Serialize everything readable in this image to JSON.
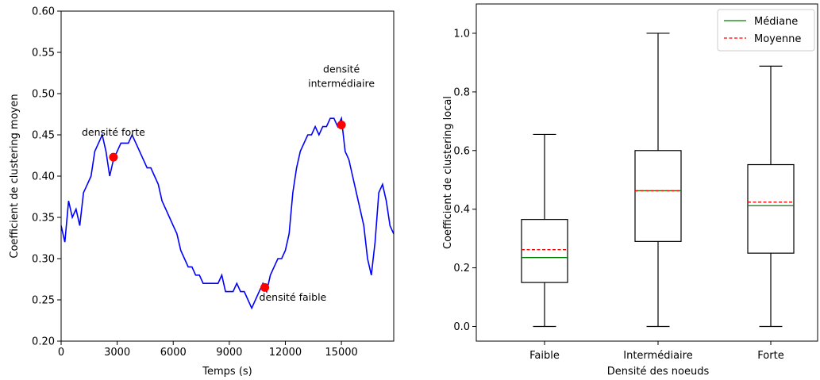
{
  "chart_data": [
    {
      "type": "line",
      "xlabel": "Temps (s)",
      "ylabel": "Coefficient de clustering moyen",
      "xlim": [
        0,
        17800
      ],
      "ylim": [
        0.2,
        0.6
      ],
      "xticks": [
        0,
        3000,
        6000,
        9000,
        12000,
        15000
      ],
      "xtick_labels": [
        "0",
        "3000",
        "6000",
        "9000",
        "12000",
        "15000"
      ],
      "yticks": [
        0.2,
        0.25,
        0.3,
        0.35,
        0.4,
        0.45,
        0.5,
        0.55,
        0.6
      ],
      "ytick_labels": [
        "0.20",
        "0.25",
        "0.30",
        "0.35",
        "0.40",
        "0.45",
        "0.50",
        "0.55",
        "0.60"
      ],
      "line_color": "#0000ff",
      "marker_color": "#ff0000",
      "series": [
        {
          "x": [
            0,
            200,
            400,
            600,
            800,
            1000,
            1200,
            1400,
            1600,
            1800,
            2000,
            2200,
            2400,
            2600,
            2800,
            3000,
            3200,
            3400,
            3600,
            3800,
            4000,
            4200,
            4400,
            4600,
            4800,
            5000,
            5200,
            5400,
            5600,
            5800,
            6000,
            6200,
            6400,
            6600,
            6800,
            7000,
            7200,
            7400,
            7600,
            7800,
            8000,
            8200,
            8400,
            8600,
            8800,
            9000,
            9200,
            9400,
            9600,
            9800,
            10000,
            10200,
            10400,
            10600,
            10800,
            11000,
            11200,
            11400,
            11600,
            11800,
            12000,
            12200,
            12400,
            12600,
            12800,
            13000,
            13200,
            13400,
            13600,
            13800,
            14000,
            14200,
            14400,
            14600,
            14800,
            15000,
            15200,
            15400,
            15600,
            15800,
            16000,
            16200,
            16400,
            16600,
            16800,
            17000,
            17200,
            17400,
            17600,
            17800
          ],
          "y": [
            0.34,
            0.32,
            0.37,
            0.35,
            0.36,
            0.34,
            0.38,
            0.39,
            0.4,
            0.43,
            0.44,
            0.45,
            0.43,
            0.4,
            0.42,
            0.43,
            0.44,
            0.44,
            0.44,
            0.45,
            0.44,
            0.43,
            0.42,
            0.41,
            0.41,
            0.4,
            0.39,
            0.37,
            0.36,
            0.35,
            0.34,
            0.33,
            0.31,
            0.3,
            0.29,
            0.29,
            0.28,
            0.28,
            0.27,
            0.27,
            0.27,
            0.27,
            0.27,
            0.28,
            0.26,
            0.26,
            0.26,
            0.27,
            0.26,
            0.26,
            0.25,
            0.24,
            0.25,
            0.26,
            0.27,
            0.26,
            0.28,
            0.29,
            0.3,
            0.3,
            0.31,
            0.33,
            0.38,
            0.41,
            0.43,
            0.44,
            0.45,
            0.45,
            0.46,
            0.45,
            0.46,
            0.46,
            0.47,
            0.47,
            0.46,
            0.47,
            0.43,
            0.42,
            0.4,
            0.38,
            0.36,
            0.34,
            0.3,
            0.28,
            0.32,
            0.38,
            0.39,
            0.37,
            0.34,
            0.33
          ]
        }
      ],
      "markers": [
        {
          "x": 2800,
          "y": 0.423
        },
        {
          "x": 10900,
          "y": 0.265
        },
        {
          "x": 15000,
          "y": 0.462
        }
      ],
      "annotations": [
        {
          "text": "densité forte",
          "x": 2800,
          "y": 0.449
        },
        {
          "text": "densité faible",
          "x": 12400,
          "y": 0.249
        },
        {
          "text": [
            "densité",
            "intermédiaire"
          ],
          "x": 15000,
          "y": 0.51
        }
      ]
    },
    {
      "type": "box",
      "xlabel": "Densité des noeuds",
      "ylabel": "Coefficient de clustering local",
      "ylim": [
        -0.05,
        1.1
      ],
      "yticks": [
        0.0,
        0.2,
        0.4,
        0.6,
        0.8,
        1.0
      ],
      "ytick_labels": [
        "0.0",
        "0.2",
        "0.4",
        "0.6",
        "0.8",
        "1.0"
      ],
      "categories": [
        "Faible",
        "Intermédiaire",
        "Forte"
      ],
      "boxes": [
        {
          "whisker_low": 0.0,
          "q1": 0.15,
          "median": 0.235,
          "mean": 0.262,
          "q3": 0.365,
          "whisker_high": 0.655
        },
        {
          "whisker_low": 0.0,
          "q1": 0.29,
          "median": 0.463,
          "mean": 0.463,
          "q3": 0.6,
          "whisker_high": 1.0
        },
        {
          "whisker_low": 0.0,
          "q1": 0.25,
          "median": 0.412,
          "mean": 0.424,
          "q3": 0.552,
          "whisker_high": 0.888
        }
      ],
      "legend": {
        "placement": "top-right",
        "entries": [
          {
            "label": "Médiane",
            "color": "#008000",
            "style": "solid"
          },
          {
            "label": "Moyenne",
            "color": "#ff0000",
            "style": "dashed"
          }
        ]
      }
    }
  ]
}
